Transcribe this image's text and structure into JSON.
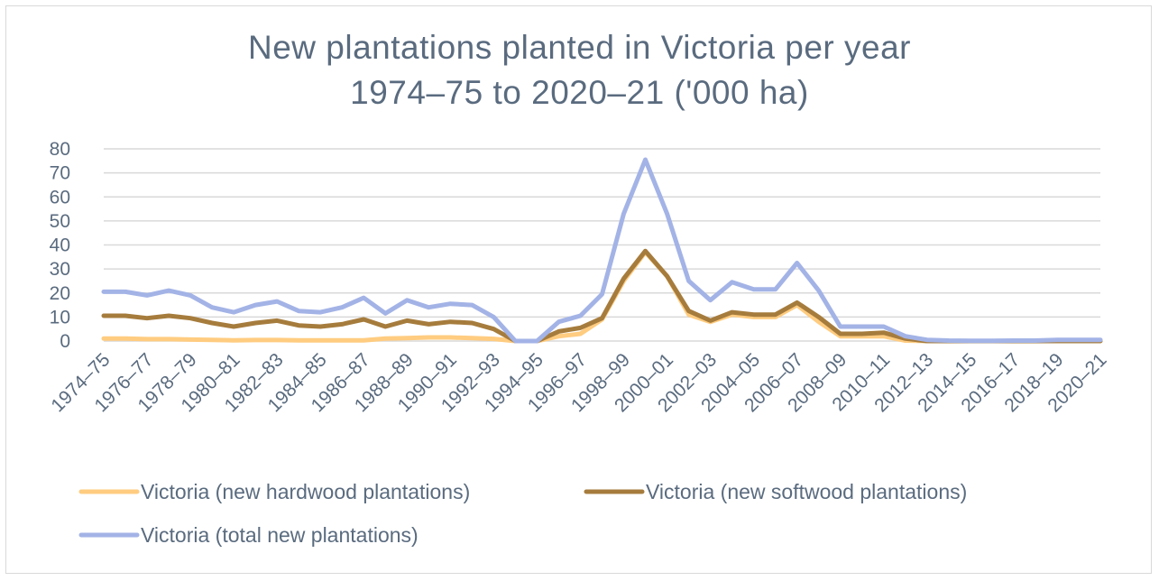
{
  "chart_data": {
    "type": "line",
    "title": "New plantations planted in Victoria per year",
    "subtitle": "1974–75 to 2020–21 ('000 ha)",
    "xlabel": "",
    "ylabel": "",
    "ylim": [
      0,
      80
    ],
    "y_ticks": [
      0,
      10,
      20,
      30,
      40,
      50,
      60,
      70,
      80
    ],
    "grid": "horizontal",
    "legend_position": "bottom",
    "categories": [
      "1974–75",
      "1975–76",
      "1976–77",
      "1977–78",
      "1978–79",
      "1979–80",
      "1980–81",
      "1981–82",
      "1982–83",
      "1983–84",
      "1984–85",
      "1985–86",
      "1986–87",
      "1987–88",
      "1988–89",
      "1989–90",
      "1990–91",
      "1991–92",
      "1992–93",
      "1993–94",
      "1994–95",
      "1995–96",
      "1996–97",
      "1997–98",
      "1998–99",
      "1999–00",
      "2000–01",
      "2001–02",
      "2002–03",
      "2003–04",
      "2004–05",
      "2005–06",
      "2006–07",
      "2007–08",
      "2008–09",
      "2009–10",
      "2010–11",
      "2011–12",
      "2012–13",
      "2013–14",
      "2014–15",
      "2015–16",
      "2016–17",
      "2017–18",
      "2018–19",
      "2019–20",
      "2020–21"
    ],
    "x_tick_labels": [
      "1974–75",
      "1976–77",
      "1978–79",
      "1980–81",
      "1982–83",
      "1984–85",
      "1986–87",
      "1988–89",
      "1990–91",
      "1992–93",
      "1994–95",
      "1996–97",
      "1998–99",
      "2000–01",
      "2002–03",
      "2004–05",
      "2006–07",
      "2008–09",
      "2010–11",
      "2012–13",
      "2014–15",
      "2016–17",
      "2018–19",
      "2020–21"
    ],
    "series": [
      {
        "name": "Victoria (new hardwood plantations)",
        "color": "#ffcc80",
        "values": [
          1,
          1,
          0.8,
          0.8,
          0.6,
          0.5,
          0.3,
          0.4,
          0.4,
          0.3,
          0.3,
          0.3,
          0.3,
          1,
          1.2,
          1.5,
          1.5,
          1.2,
          0.9,
          0,
          0,
          2,
          3,
          9,
          25,
          37,
          27,
          11,
          8,
          11,
          10,
          10,
          15,
          8,
          2,
          2,
          2,
          0.2,
          0,
          0,
          0,
          0,
          0,
          0,
          0,
          0,
          0
        ]
      },
      {
        "name": "Victoria (new softwood plantations)",
        "color": "#a67c3d",
        "values": [
          10.5,
          10.5,
          9.5,
          10.5,
          9.5,
          7.5,
          6,
          7.5,
          8.5,
          6.5,
          6,
          7,
          9,
          6,
          8.5,
          7,
          8,
          7.5,
          5,
          0,
          0,
          4,
          5.5,
          9.5,
          26,
          37.5,
          27,
          12.5,
          8.5,
          12,
          11,
          11,
          16,
          10,
          3,
          3,
          3.5,
          1,
          0,
          0,
          0,
          0,
          0,
          0,
          0,
          0,
          0
        ]
      },
      {
        "name": "Victoria (total new plantations)",
        "color": "#a3b3e6",
        "values": [
          20.5,
          20.5,
          19,
          21,
          19,
          14,
          12,
          15,
          16.5,
          12.5,
          12,
          14,
          18,
          11.5,
          17,
          14,
          15.5,
          15,
          10,
          0,
          0,
          8,
          10.5,
          19.5,
          53,
          75.5,
          53,
          25,
          17,
          24.5,
          21.5,
          21.5,
          32.5,
          21,
          6,
          6,
          6,
          2,
          0.5,
          0.2,
          0.1,
          0.1,
          0.2,
          0.2,
          0.5,
          0.5,
          0.5
        ]
      }
    ]
  }
}
